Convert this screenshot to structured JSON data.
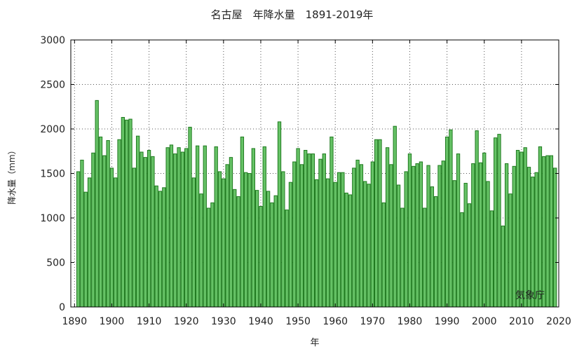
{
  "chart_data": {
    "type": "bar",
    "title": "名古屋　年降水量　1891-2019年",
    "xlabel": "年",
    "ylabel": "降水量（mm）",
    "annotation": "気象庁",
    "xlim": [
      1889,
      2020
    ],
    "ylim": [
      0,
      3000
    ],
    "x_ticks": [
      1890,
      1900,
      1910,
      1920,
      1930,
      1940,
      1950,
      1960,
      1970,
      1980,
      1990,
      2000,
      2010,
      2020
    ],
    "y_ticks": [
      0,
      500,
      1000,
      1500,
      2000,
      2500,
      3000
    ],
    "grid": true,
    "bar_color": "#66c266",
    "bar_edge_color": "#1f7a1f",
    "years": [
      1891,
      1892,
      1893,
      1894,
      1895,
      1896,
      1897,
      1898,
      1899,
      1900,
      1901,
      1902,
      1903,
      1904,
      1905,
      1906,
      1907,
      1908,
      1909,
      1910,
      1911,
      1912,
      1913,
      1914,
      1915,
      1916,
      1917,
      1918,
      1919,
      1920,
      1921,
      1922,
      1923,
      1924,
      1925,
      1926,
      1927,
      1928,
      1929,
      1930,
      1931,
      1932,
      1933,
      1934,
      1935,
      1936,
      1937,
      1938,
      1939,
      1940,
      1941,
      1942,
      1943,
      1944,
      1945,
      1946,
      1947,
      1948,
      1949,
      1950,
      1951,
      1952,
      1953,
      1954,
      1955,
      1956,
      1957,
      1958,
      1959,
      1960,
      1961,
      1962,
      1963,
      1964,
      1965,
      1966,
      1967,
      1968,
      1969,
      1970,
      1971,
      1972,
      1973,
      1974,
      1975,
      1976,
      1977,
      1978,
      1979,
      1980,
      1981,
      1982,
      1983,
      1984,
      1985,
      1986,
      1987,
      1988,
      1989,
      1990,
      1991,
      1992,
      1993,
      1994,
      1995,
      1996,
      1997,
      1998,
      1999,
      2000,
      2001,
      2002,
      2003,
      2004,
      2005,
      2006,
      2007,
      2008,
      2009,
      2010,
      2011,
      2012,
      2013,
      2014,
      2015,
      2016,
      2017,
      2018,
      2019
    ],
    "values": [
      1520,
      1650,
      1290,
      1450,
      1730,
      2320,
      1910,
      1700,
      1870,
      1560,
      1450,
      1880,
      2130,
      2100,
      2110,
      1560,
      1920,
      1740,
      1680,
      1760,
      1690,
      1360,
      1300,
      1340,
      1790,
      1820,
      1720,
      1790,
      1740,
      1780,
      2020,
      1450,
      1810,
      1270,
      1810,
      1110,
      1170,
      1800,
      1520,
      1440,
      1600,
      1680,
      1320,
      1240,
      1910,
      1510,
      1500,
      1780,
      1310,
      1130,
      1800,
      1300,
      1170,
      1250,
      2080,
      1520,
      1090,
      1400,
      1630,
      1780,
      1600,
      1760,
      1720,
      1720,
      1430,
      1660,
      1720,
      1440,
      1910,
      1400,
      1510,
      1510,
      1280,
      1260,
      1560,
      1650,
      1600,
      1410,
      1380,
      1630,
      1880,
      1880,
      1170,
      1790,
      1600,
      2030,
      1370,
      1110,
      1520,
      1720,
      1580,
      1610,
      1630,
      1110,
      1590,
      1350,
      1240,
      1590,
      1640,
      1910,
      1990,
      1420,
      1720,
      1060,
      1390,
      1160,
      1610,
      1980,
      1620,
      1730,
      1410,
      1080,
      1900,
      1940,
      910,
      1610,
      1270,
      1580,
      1760,
      1740,
      1790,
      1570,
      1460,
      1510,
      1800,
      1690,
      1700,
      1700,
      1560
    ]
  }
}
